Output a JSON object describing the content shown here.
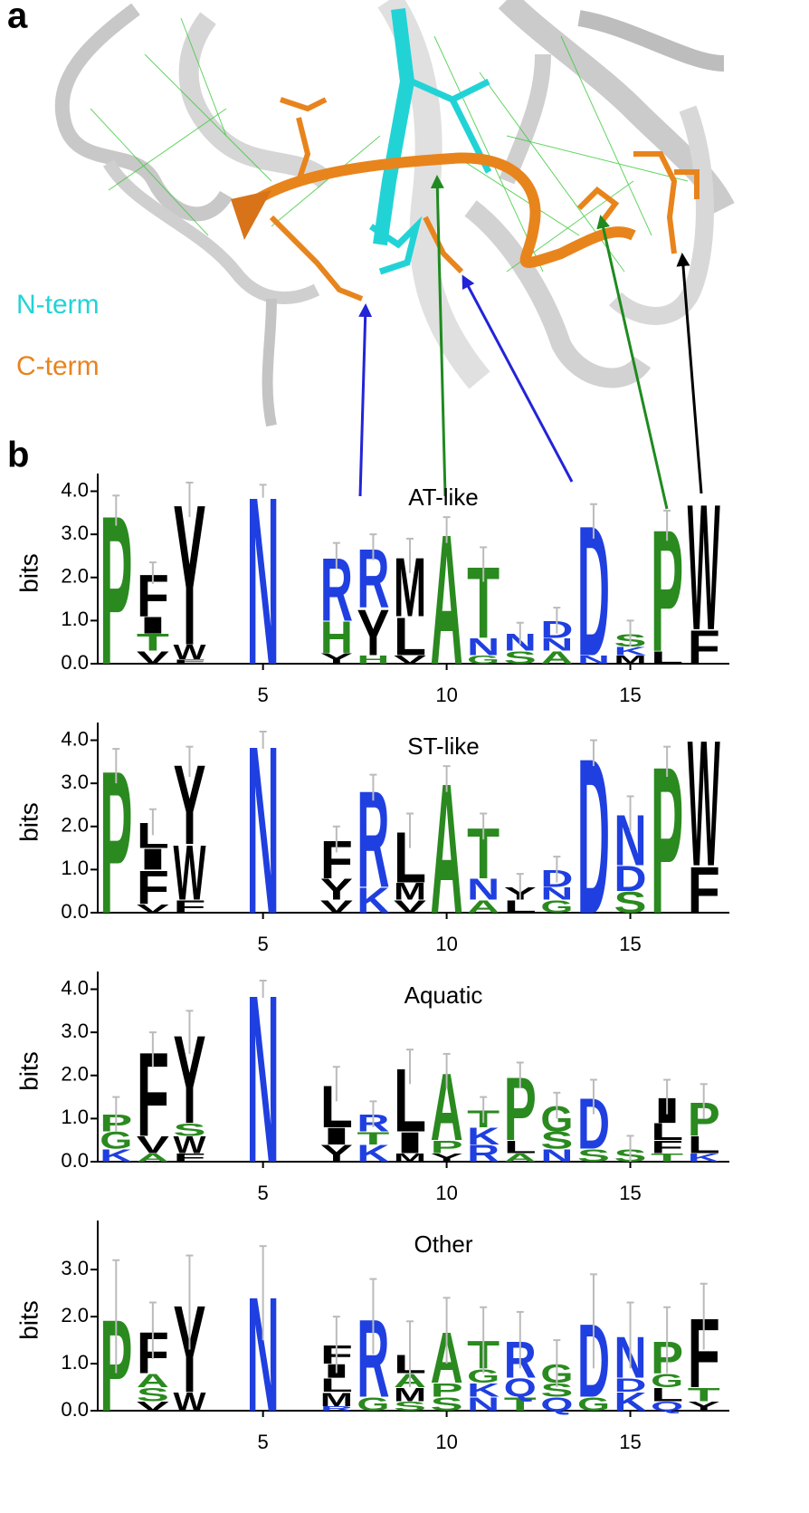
{
  "panel_a": {
    "label": "a",
    "legend": [
      "N-term",
      "C-term"
    ],
    "legend_colors": [
      "#22d3d6",
      "#e8841c"
    ]
  },
  "panel_b": {
    "label": "b"
  },
  "letter_colors": {
    "P": "#2a8a1f",
    "G": "#2a8a1f",
    "S": "#2a8a1f",
    "T": "#2a8a1f",
    "H": "#2a8a1f",
    "A": "#2a8a1f",
    "N": "#1f3fe0",
    "D": "#1f3fe0",
    "R": "#1f3fe0",
    "K": "#1f3fe0",
    "Q": "#1f3fe0",
    "F": "#000000",
    "W": "#000000",
    "Y": "#000000",
    "I": "#000000",
    "L": "#000000",
    "M": "#000000",
    "V": "#000000"
  },
  "chart_data": [
    {
      "type": "logo",
      "title": "AT-like",
      "y_label": "bits",
      "xlim": [
        0.5,
        17.5
      ],
      "ylim": [
        0,
        4.2
      ],
      "xticks": [
        5,
        10,
        15
      ],
      "yticks": [
        {
          "value": 0,
          "label": "0.0"
        },
        {
          "value": 1,
          "label": "1.0"
        },
        {
          "value": 2,
          "label": "2.0"
        },
        {
          "value": 3,
          "label": "3.0"
        },
        {
          "value": 4,
          "label": "4.0"
        }
      ],
      "x": [
        1,
        2,
        3,
        4,
        5,
        6,
        7,
        8,
        9,
        10,
        11,
        12,
        13,
        14,
        15,
        16,
        17
      ],
      "stacks": [
        [
          {
            "letter": "P",
            "height": 3.55
          }
        ],
        [
          {
            "letter": "V",
            "height": 0.3
          },
          {
            "letter": "T",
            "height": 0.4
          },
          {
            "letter": "I",
            "height": 0.4
          },
          {
            "letter": "F",
            "height": 1.0
          }
        ],
        [
          {
            "letter": "F",
            "height": 0.1
          },
          {
            "letter": "W",
            "height": 0.35
          },
          {
            "letter": "Y",
            "height": 3.35
          }
        ],
        [],
        [
          {
            "letter": "N",
            "height": 4.0
          }
        ],
        [],
        [
          {
            "letter": "Y",
            "height": 0.25
          },
          {
            "letter": "H",
            "height": 0.75
          },
          {
            "letter": "R",
            "height": 1.5
          }
        ],
        [
          {
            "letter": "H",
            "height": 0.2
          },
          {
            "letter": "Y",
            "height": 1.1
          },
          {
            "letter": "R",
            "height": 1.4
          }
        ],
        [
          {
            "letter": "V",
            "height": 0.2
          },
          {
            "letter": "L",
            "height": 0.9
          },
          {
            "letter": "M",
            "height": 1.4
          }
        ],
        [
          {
            "letter": "A",
            "height": 3.1
          }
        ],
        [
          {
            "letter": "G",
            "height": 0.2
          },
          {
            "letter": "N",
            "height": 0.4
          },
          {
            "letter": "T",
            "height": 1.7
          }
        ],
        [
          {
            "letter": "S",
            "height": 0.3
          },
          {
            "letter": "N",
            "height": 0.4
          }
        ],
        [
          {
            "letter": "A",
            "height": 0.3
          },
          {
            "letter": "N",
            "height": 0.3
          },
          {
            "letter": "D",
            "height": 0.4
          }
        ],
        [
          {
            "letter": "N",
            "height": 0.2
          },
          {
            "letter": "D",
            "height": 3.1
          }
        ],
        [
          {
            "letter": "M",
            "height": 0.2
          },
          {
            "letter": "K",
            "height": 0.2
          },
          {
            "letter": "S",
            "height": 0.3
          }
        ],
        [
          {
            "letter": "L",
            "height": 0.3
          },
          {
            "letter": "P",
            "height": 2.9
          }
        ],
        [
          {
            "letter": "F",
            "height": 0.8
          },
          {
            "letter": "W",
            "height": 3.0
          }
        ]
      ],
      "errors": [
        0.35,
        0.25,
        0.4,
        null,
        0.15,
        null,
        0.3,
        0.3,
        0.4,
        0.3,
        0.4,
        0.25,
        0.3,
        0.4,
        0.3,
        0.35,
        null
      ]
    },
    {
      "type": "logo",
      "title": "ST-like",
      "y_label": "bits",
      "xlim": [
        0.5,
        17.5
      ],
      "ylim": [
        0,
        4.2
      ],
      "xticks": [
        5,
        10,
        15
      ],
      "yticks": [
        {
          "value": 0,
          "label": "0.0"
        },
        {
          "value": 1,
          "label": "1.0"
        },
        {
          "value": 2,
          "label": "2.0"
        },
        {
          "value": 3,
          "label": "3.0"
        },
        {
          "value": 4,
          "label": "4.0"
        }
      ],
      "x": [
        1,
        2,
        3,
        4,
        5,
        6,
        7,
        8,
        9,
        10,
        11,
        12,
        13,
        14,
        15,
        16,
        17
      ],
      "stacks": [
        [
          {
            "letter": "P",
            "height": 3.4
          }
        ],
        [
          {
            "letter": "V",
            "height": 0.2
          },
          {
            "letter": "F",
            "height": 0.8
          },
          {
            "letter": "I",
            "height": 0.5
          },
          {
            "letter": "L",
            "height": 0.6
          }
        ],
        [
          {
            "letter": "F",
            "height": 0.3
          },
          {
            "letter": "W",
            "height": 1.3
          },
          {
            "letter": "Y",
            "height": 1.9
          }
        ],
        [],
        [
          {
            "letter": "N",
            "height": 4.0
          }
        ],
        [],
        [
          {
            "letter": "V",
            "height": 0.3
          },
          {
            "letter": "Y",
            "height": 0.5
          },
          {
            "letter": "F",
            "height": 0.9
          }
        ],
        [
          {
            "letter": "K",
            "height": 0.6
          },
          {
            "letter": "R",
            "height": 2.3
          }
        ],
        [
          {
            "letter": "V",
            "height": 0.3
          },
          {
            "letter": "M",
            "height": 0.4
          },
          {
            "letter": "L",
            "height": 1.2
          }
        ],
        [
          {
            "letter": "A",
            "height": 3.1
          }
        ],
        [
          {
            "letter": "A",
            "height": 0.3
          },
          {
            "letter": "N",
            "height": 0.5
          },
          {
            "letter": "T",
            "height": 1.2
          }
        ],
        [
          {
            "letter": "L",
            "height": 0.3
          },
          {
            "letter": "Y",
            "height": 0.3
          }
        ],
        [
          {
            "letter": "G",
            "height": 0.3
          },
          {
            "letter": "N",
            "height": 0.3
          },
          {
            "letter": "D",
            "height": 0.4
          }
        ],
        [
          {
            "letter": "D",
            "height": 3.7
          }
        ],
        [
          {
            "letter": "S",
            "height": 0.5
          },
          {
            "letter": "D",
            "height": 0.6
          },
          {
            "letter": "N",
            "height": 1.2
          }
        ],
        [
          {
            "letter": "P",
            "height": 3.5
          }
        ],
        [
          {
            "letter": "F",
            "height": 1.1
          },
          {
            "letter": "W",
            "height": 3.0
          }
        ]
      ],
      "errors": [
        0.4,
        0.3,
        0.35,
        null,
        0.2,
        null,
        0.3,
        0.3,
        0.4,
        0.3,
        0.3,
        0.3,
        0.3,
        0.3,
        0.4,
        0.35,
        null
      ]
    },
    {
      "type": "logo",
      "title": "Aquatic",
      "y_label": "bits",
      "xlim": [
        0.5,
        17.5
      ],
      "ylim": [
        0,
        4.2
      ],
      "xticks": [
        5,
        10,
        15
      ],
      "yticks": [
        {
          "value": 0,
          "label": "0.0"
        },
        {
          "value": 1,
          "label": "1.0"
        },
        {
          "value": 2,
          "label": "2.0"
        },
        {
          "value": 3,
          "label": "3.0"
        },
        {
          "value": 4,
          "label": "4.0"
        }
      ],
      "x": [
        1,
        2,
        3,
        4,
        5,
        6,
        7,
        8,
        9,
        10,
        11,
        12,
        13,
        14,
        15,
        16,
        17
      ],
      "stacks": [
        [
          {
            "letter": "K",
            "height": 0.3
          },
          {
            "letter": "G",
            "height": 0.4
          },
          {
            "letter": "P",
            "height": 0.4
          }
        ],
        [
          {
            "letter": "A",
            "height": 0.2
          },
          {
            "letter": "V",
            "height": 0.4
          },
          {
            "letter": "F",
            "height": 2.0
          }
        ],
        [
          {
            "letter": "F",
            "height": 0.2
          },
          {
            "letter": "W",
            "height": 0.4
          },
          {
            "letter": "S",
            "height": 0.3
          },
          {
            "letter": "Y",
            "height": 2.1
          }
        ],
        [],
        [
          {
            "letter": "N",
            "height": 4.0
          }
        ],
        [],
        [
          {
            "letter": "Y",
            "height": 0.4
          },
          {
            "letter": "I",
            "height": 0.4
          },
          {
            "letter": "L",
            "height": 1.0
          }
        ],
        [
          {
            "letter": "K",
            "height": 0.4
          },
          {
            "letter": "T",
            "height": 0.3
          },
          {
            "letter": "R",
            "height": 0.4
          }
        ],
        [
          {
            "letter": "M",
            "height": 0.2
          },
          {
            "letter": "I",
            "height": 0.5
          },
          {
            "letter": "L",
            "height": 1.5
          }
        ],
        [
          {
            "letter": "Y",
            "height": 0.2
          },
          {
            "letter": "P",
            "height": 0.3
          },
          {
            "letter": "A",
            "height": 1.6
          }
        ],
        [
          {
            "letter": "R",
            "height": 0.4
          },
          {
            "letter": "K",
            "height": 0.4
          },
          {
            "letter": "T",
            "height": 0.4
          }
        ],
        [
          {
            "letter": "A",
            "height": 0.2
          },
          {
            "letter": "L",
            "height": 0.3
          },
          {
            "letter": "P",
            "height": 1.5
          }
        ],
        [
          {
            "letter": "N",
            "height": 0.3
          },
          {
            "letter": "S",
            "height": 0.4
          },
          {
            "letter": "G",
            "height": 0.6
          }
        ],
        [
          {
            "letter": "S",
            "height": 0.3
          },
          {
            "letter": "D",
            "height": 1.2
          }
        ],
        [
          {
            "letter": "S",
            "height": 0.3
          }
        ],
        [
          {
            "letter": "T",
            "height": 0.2
          },
          {
            "letter": "F",
            "height": 0.3
          },
          {
            "letter": "L",
            "height": 0.4
          },
          {
            "letter": "I",
            "height": 0.6
          }
        ],
        [
          {
            "letter": "K",
            "height": 0.2
          },
          {
            "letter": "L",
            "height": 0.4
          },
          {
            "letter": "P",
            "height": 0.8
          }
        ]
      ],
      "errors": [
        0.4,
        0.4,
        0.5,
        null,
        0.2,
        null,
        0.4,
        0.3,
        0.4,
        0.4,
        0.3,
        0.3,
        0.3,
        0.4,
        0.3,
        0.4,
        0.4
      ]
    },
    {
      "type": "logo",
      "title": "Other",
      "y_label": "bits",
      "xlim": [
        0.5,
        17.5
      ],
      "ylim": [
        0,
        3.85
      ],
      "xticks": [
        5,
        10,
        15
      ],
      "yticks": [
        {
          "value": 0,
          "label": "0.0"
        },
        {
          "value": 1,
          "label": "1.0"
        },
        {
          "value": 2,
          "label": "2.0"
        },
        {
          "value": 3,
          "label": "3.0"
        }
      ],
      "x": [
        1,
        2,
        3,
        4,
        5,
        6,
        7,
        8,
        9,
        10,
        11,
        12,
        13,
        14,
        15,
        16,
        17
      ],
      "stacks": [
        [
          {
            "letter": "P",
            "height": 2.0
          }
        ],
        [
          {
            "letter": "V",
            "height": 0.2
          },
          {
            "letter": "S",
            "height": 0.3
          },
          {
            "letter": "A",
            "height": 0.3
          },
          {
            "letter": "F",
            "height": 0.9
          }
        ],
        [
          {
            "letter": "W",
            "height": 0.4
          },
          {
            "letter": "Y",
            "height": 1.9
          }
        ],
        [],
        [
          {
            "letter": "N",
            "height": 2.5
          }
        ],
        [],
        [
          {
            "letter": "R",
            "height": 0.1
          },
          {
            "letter": "M",
            "height": 0.3
          },
          {
            "letter": "L",
            "height": 0.3
          },
          {
            "letter": "I",
            "height": 0.3
          },
          {
            "letter": "F",
            "height": 0.4
          }
        ],
        [
          {
            "letter": "G",
            "height": 0.3
          },
          {
            "letter": "R",
            "height": 1.7
          }
        ],
        [
          {
            "letter": "S",
            "height": 0.2
          },
          {
            "letter": "M",
            "height": 0.3
          },
          {
            "letter": "A",
            "height": 0.3
          },
          {
            "letter": "L",
            "height": 0.4
          }
        ],
        [
          {
            "letter": "S",
            "height": 0.3
          },
          {
            "letter": "P",
            "height": 0.3
          },
          {
            "letter": "A",
            "height": 1.1
          }
        ],
        [
          {
            "letter": "N",
            "height": 0.3
          },
          {
            "letter": "K",
            "height": 0.3
          },
          {
            "letter": "G",
            "height": 0.3
          },
          {
            "letter": "T",
            "height": 0.6
          }
        ],
        [
          {
            "letter": "T",
            "height": 0.3
          },
          {
            "letter": "Q",
            "height": 0.4
          },
          {
            "letter": "R",
            "height": 0.8
          }
        ],
        [
          {
            "letter": "Q",
            "height": 0.3
          },
          {
            "letter": "S",
            "height": 0.3
          },
          {
            "letter": "G",
            "height": 0.4
          }
        ],
        [
          {
            "letter": "G",
            "height": 0.3
          },
          {
            "letter": "D",
            "height": 1.6
          }
        ],
        [
          {
            "letter": "K",
            "height": 0.4
          },
          {
            "letter": "D",
            "height": 0.3
          },
          {
            "letter": "N",
            "height": 0.9
          }
        ],
        [
          {
            "letter": "Q",
            "height": 0.2
          },
          {
            "letter": "L",
            "height": 0.3
          },
          {
            "letter": "G",
            "height": 0.3
          },
          {
            "letter": "P",
            "height": 0.7
          }
        ],
        [
          {
            "letter": "Y",
            "height": 0.2
          },
          {
            "letter": "T",
            "height": 0.3
          },
          {
            "letter": "F",
            "height": 1.5
          }
        ]
      ],
      "errors": [
        1.2,
        0.6,
        1.0,
        null,
        1.0,
        null,
        0.6,
        0.8,
        0.7,
        0.7,
        0.7,
        0.6,
        0.5,
        1.0,
        0.7,
        0.7,
        0.7
      ]
    }
  ]
}
